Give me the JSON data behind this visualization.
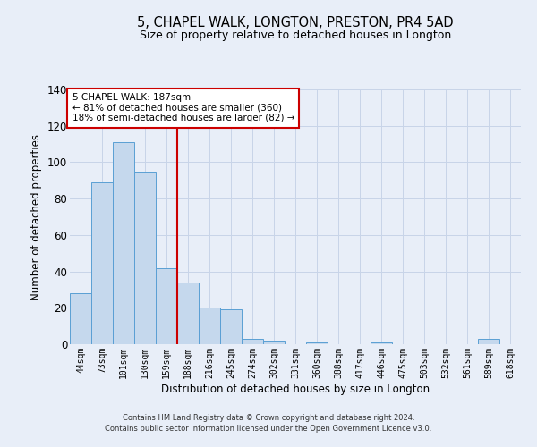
{
  "title": "5, CHAPEL WALK, LONGTON, PRESTON, PR4 5AD",
  "subtitle": "Size of property relative to detached houses in Longton",
  "xlabel": "Distribution of detached houses by size in Longton",
  "ylabel": "Number of detached properties",
  "bar_labels": [
    "44sqm",
    "73sqm",
    "101sqm",
    "130sqm",
    "159sqm",
    "188sqm",
    "216sqm",
    "245sqm",
    "274sqm",
    "302sqm",
    "331sqm",
    "360sqm",
    "388sqm",
    "417sqm",
    "446sqm",
    "475sqm",
    "503sqm",
    "532sqm",
    "561sqm",
    "589sqm",
    "618sqm"
  ],
  "bar_values": [
    28,
    89,
    111,
    95,
    42,
    34,
    20,
    19,
    3,
    2,
    0,
    1,
    0,
    0,
    1,
    0,
    0,
    0,
    0,
    3,
    0
  ],
  "bar_color": "#c5d8ed",
  "bar_edge_color": "#5a9fd4",
  "vline_color": "#cc0000",
  "annotation_text": "5 CHAPEL WALK: 187sqm\n← 81% of detached houses are smaller (360)\n18% of semi-detached houses are larger (82) →",
  "annotation_box_color": "#ffffff",
  "annotation_box_edge": "#cc0000",
  "ylim": [
    0,
    140
  ],
  "yticks": [
    0,
    20,
    40,
    60,
    80,
    100,
    120,
    140
  ],
  "grid_color": "#c8d4e8",
  "bg_color": "#e8eef8",
  "footer1": "Contains HM Land Registry data © Crown copyright and database right 2024.",
  "footer2": "Contains public sector information licensed under the Open Government Licence v3.0."
}
